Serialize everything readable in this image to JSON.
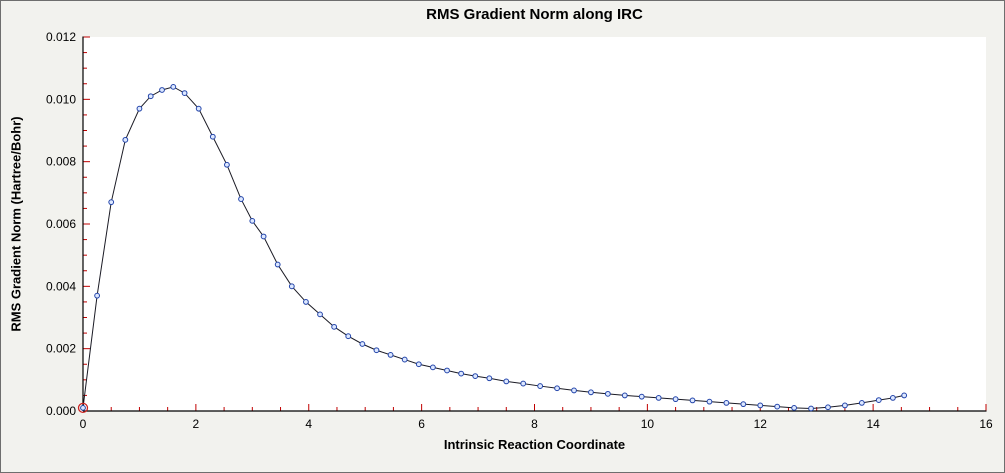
{
  "window": {
    "bg_color": "#f2f2ee",
    "plot_bg_color": "#ffffff",
    "border_color": "#6e6e6e"
  },
  "chart_data": {
    "type": "line",
    "title": "RMS Gradient Norm along IRC",
    "xlabel": "Intrinsic Reaction Coordinate",
    "ylabel": "RMS Gradient Norm (Hartree/Bohr)",
    "xlim": [
      0,
      16
    ],
    "ylim": [
      0,
      0.012
    ],
    "x_major_ticks": [
      0,
      2,
      4,
      6,
      8,
      10,
      12,
      14,
      16
    ],
    "x_tick_labels": [
      "0",
      "2",
      "4",
      "6",
      "8",
      "10",
      "12",
      "14",
      "16"
    ],
    "x_minor_step": 0.5,
    "y_major_ticks": [
      0.0,
      0.002,
      0.004,
      0.006,
      0.008,
      0.01,
      0.012
    ],
    "y_tick_labels": [
      "0.000",
      "0.002",
      "0.004",
      "0.006",
      "0.008",
      "0.010",
      "0.012"
    ],
    "y_minor_step": 0.0005,
    "grid": false,
    "legend": "none",
    "axis_color": "#000000",
    "tick_color": "#c00000",
    "line_color": "#1a1a24",
    "marker_stroke_color": "#2244aa",
    "marker_fill_color": "#dde8ff",
    "highlight_point": {
      "x": 0,
      "y": 0.0001,
      "color": "#cc2222"
    },
    "series": [
      {
        "name": "RMS Gradient Norm",
        "x": [
          0,
          0.25,
          0.5,
          0.75,
          1.0,
          1.2,
          1.4,
          1.6,
          1.8,
          2.05,
          2.3,
          2.55,
          2.8,
          3.0,
          3.2,
          3.45,
          3.7,
          3.95,
          4.2,
          4.45,
          4.7,
          4.95,
          5.2,
          5.45,
          5.7,
          5.95,
          6.2,
          6.45,
          6.7,
          6.95,
          7.2,
          7.5,
          7.8,
          8.1,
          8.4,
          8.7,
          9.0,
          9.3,
          9.6,
          9.9,
          10.2,
          10.5,
          10.8,
          11.1,
          11.4,
          11.7,
          12.0,
          12.3,
          12.6,
          12.9,
          13.2,
          13.5,
          13.8,
          14.1,
          14.35,
          14.55
        ],
        "y": [
          0.0001,
          0.0037,
          0.0067,
          0.0087,
          0.0097,
          0.0101,
          0.0103,
          0.0104,
          0.0102,
          0.0097,
          0.0088,
          0.0079,
          0.0068,
          0.0061,
          0.0056,
          0.0047,
          0.004,
          0.0035,
          0.0031,
          0.0027,
          0.0024,
          0.00215,
          0.00195,
          0.0018,
          0.00165,
          0.0015,
          0.0014,
          0.0013,
          0.0012,
          0.00112,
          0.00105,
          0.00095,
          0.00088,
          0.0008,
          0.00073,
          0.00066,
          0.0006,
          0.00055,
          0.0005,
          0.00046,
          0.00042,
          0.00038,
          0.00034,
          0.0003,
          0.00026,
          0.00022,
          0.00018,
          0.00014,
          0.0001,
          8e-05,
          0.00012,
          0.00018,
          0.00026,
          0.00035,
          0.00042,
          0.0005
        ]
      }
    ]
  }
}
